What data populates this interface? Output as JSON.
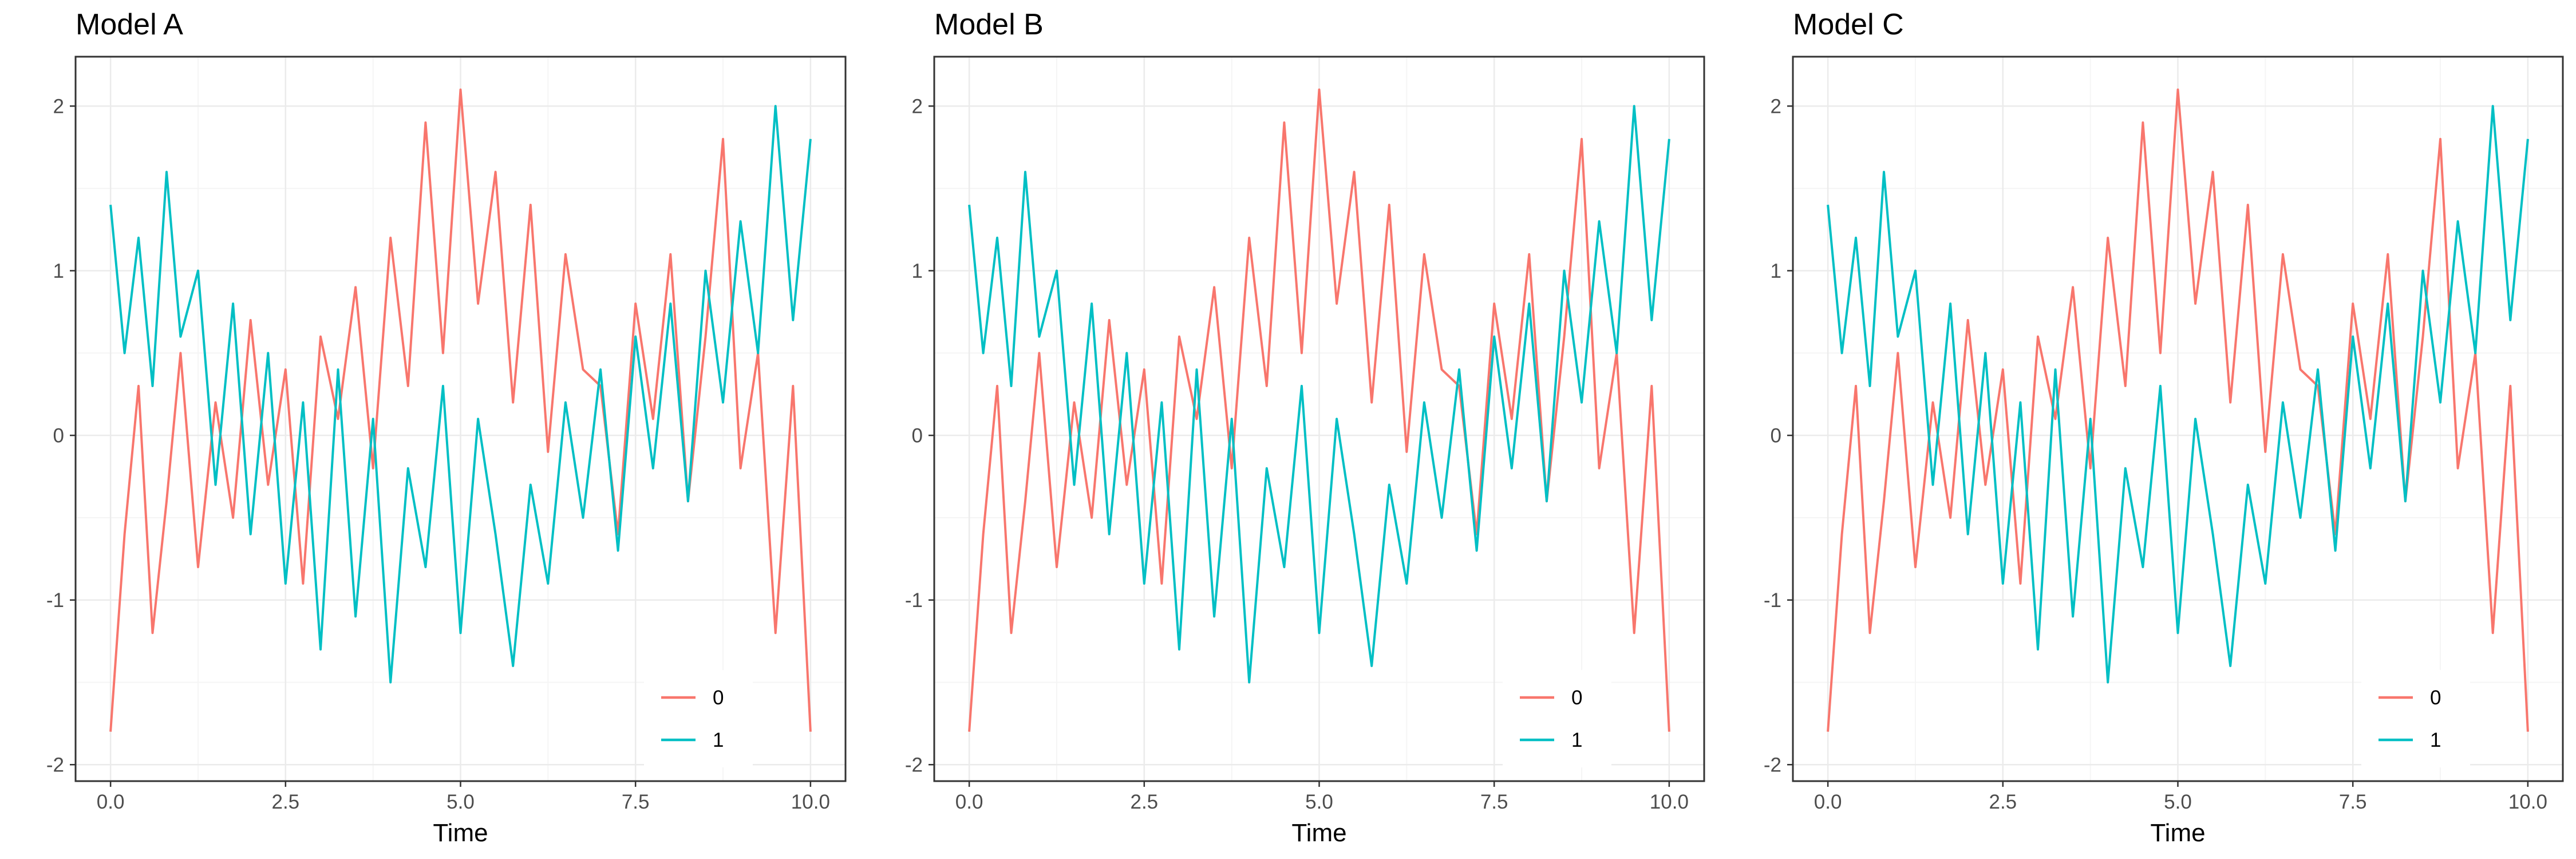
{
  "colors": {
    "series_0": "#F8766D",
    "series_1": "#00BFC4",
    "panel_border": "#333333",
    "grid_major": "#EBEBEB",
    "grid_minor": "#F5F5F5",
    "tick_text": "#4D4D4D"
  },
  "chart_data": [
    {
      "type": "line",
      "title": "Model A",
      "xlabel": "Time",
      "ylabel": "",
      "xlim": [
        -0.5,
        10.5
      ],
      "ylim": [
        -2.1,
        2.3
      ],
      "xticks": [
        0.0,
        2.5,
        5.0,
        7.5,
        10.0
      ],
      "xtick_labels": [
        "0.0",
        "2.5",
        "5.0",
        "7.5",
        "10.0"
      ],
      "yticks": [
        -2,
        -1,
        0,
        1,
        2
      ],
      "ytick_labels": [
        "-2",
        "-1",
        "0",
        "1",
        "2"
      ],
      "grid": true,
      "legend_position": "bottom-right",
      "series": [
        {
          "name": "0",
          "color": "#F8766D",
          "x": [
            0.0,
            0.2,
            0.4,
            0.6,
            0.8,
            1.0,
            1.25,
            1.5,
            1.75,
            2.0,
            2.25,
            2.5,
            2.75,
            3.0,
            3.25,
            3.5,
            3.75,
            4.0,
            4.25,
            4.5,
            4.75,
            5.0,
            5.25,
            5.5,
            5.75,
            6.0,
            6.25,
            6.5,
            6.75,
            7.0,
            7.25,
            7.5,
            7.75,
            8.0,
            8.25,
            8.5,
            8.75,
            9.0,
            9.25,
            9.5,
            9.75,
            10.0
          ],
          "y": [
            -1.8,
            -0.6,
            0.3,
            -1.2,
            -0.4,
            0.5,
            -0.8,
            0.2,
            -0.5,
            0.7,
            -0.3,
            0.4,
            -0.9,
            0.6,
            0.1,
            0.9,
            -0.2,
            1.2,
            0.3,
            1.9,
            0.5,
            2.1,
            0.8,
            1.6,
            0.2,
            1.4,
            -0.1,
            1.1,
            0.4,
            0.3,
            -0.6,
            0.8,
            0.1,
            1.1,
            -0.4,
            0.6,
            1.8,
            -0.2,
            0.5,
            -1.2,
            0.3,
            -1.8
          ]
        },
        {
          "name": "1",
          "color": "#00BFC4",
          "x": [
            0.0,
            0.2,
            0.4,
            0.6,
            0.8,
            1.0,
            1.25,
            1.5,
            1.75,
            2.0,
            2.25,
            2.5,
            2.75,
            3.0,
            3.25,
            3.5,
            3.75,
            4.0,
            4.25,
            4.5,
            4.75,
            5.0,
            5.25,
            5.5,
            5.75,
            6.0,
            6.25,
            6.5,
            6.75,
            7.0,
            7.25,
            7.5,
            7.75,
            8.0,
            8.25,
            8.5,
            8.75,
            9.0,
            9.25,
            9.5,
            9.75,
            10.0
          ],
          "y": [
            1.4,
            0.5,
            1.2,
            0.3,
            1.6,
            0.6,
            1.0,
            -0.3,
            0.8,
            -0.6,
            0.5,
            -0.9,
            0.2,
            -1.3,
            0.4,
            -1.1,
            0.1,
            -1.5,
            -0.2,
            -0.8,
            0.3,
            -1.2,
            0.1,
            -0.6,
            -1.4,
            -0.3,
            -0.9,
            0.2,
            -0.5,
            0.4,
            -0.7,
            0.6,
            -0.2,
            0.8,
            -0.4,
            1.0,
            0.2,
            1.3,
            0.5,
            2.0,
            0.7,
            1.8
          ]
        }
      ]
    },
    {
      "type": "line",
      "title": "Model B",
      "xlabel": "Time",
      "ylabel": "",
      "xlim": [
        -0.5,
        10.5
      ],
      "ylim": [
        -2.1,
        2.3
      ],
      "xticks": [
        0.0,
        2.5,
        5.0,
        7.5,
        10.0
      ],
      "xtick_labels": [
        "0.0",
        "2.5",
        "5.0",
        "7.5",
        "10.0"
      ],
      "yticks": [
        -2,
        -1,
        0,
        1,
        2
      ],
      "ytick_labels": [
        "-2",
        "-1",
        "0",
        "1",
        "2"
      ],
      "grid": true,
      "legend_position": "bottom-right",
      "series": [
        {
          "name": "0",
          "color": "#F8766D",
          "x": [
            0.0,
            0.2,
            0.4,
            0.6,
            0.8,
            1.0,
            1.25,
            1.5,
            1.75,
            2.0,
            2.25,
            2.5,
            2.75,
            3.0,
            3.25,
            3.5,
            3.75,
            4.0,
            4.25,
            4.5,
            4.75,
            5.0,
            5.25,
            5.5,
            5.75,
            6.0,
            6.25,
            6.5,
            6.75,
            7.0,
            7.25,
            7.5,
            7.75,
            8.0,
            8.25,
            8.5,
            8.75,
            9.0,
            9.25,
            9.5,
            9.75,
            10.0
          ],
          "y": [
            -1.8,
            -0.6,
            0.3,
            -1.2,
            -0.4,
            0.5,
            -0.8,
            0.2,
            -0.5,
            0.7,
            -0.3,
            0.4,
            -0.9,
            0.6,
            0.1,
            0.9,
            -0.2,
            1.2,
            0.3,
            1.9,
            0.5,
            2.1,
            0.8,
            1.6,
            0.2,
            1.4,
            -0.1,
            1.1,
            0.4,
            0.3,
            -0.6,
            0.8,
            0.1,
            1.1,
            -0.4,
            0.6,
            1.8,
            -0.2,
            0.5,
            -1.2,
            0.3,
            -1.8
          ]
        },
        {
          "name": "1",
          "color": "#00BFC4",
          "x": [
            0.0,
            0.2,
            0.4,
            0.6,
            0.8,
            1.0,
            1.25,
            1.5,
            1.75,
            2.0,
            2.25,
            2.5,
            2.75,
            3.0,
            3.25,
            3.5,
            3.75,
            4.0,
            4.25,
            4.5,
            4.75,
            5.0,
            5.25,
            5.5,
            5.75,
            6.0,
            6.25,
            6.5,
            6.75,
            7.0,
            7.25,
            7.5,
            7.75,
            8.0,
            8.25,
            8.5,
            8.75,
            9.0,
            9.25,
            9.5,
            9.75,
            10.0
          ],
          "y": [
            1.4,
            0.5,
            1.2,
            0.3,
            1.6,
            0.6,
            1.0,
            -0.3,
            0.8,
            -0.6,
            0.5,
            -0.9,
            0.2,
            -1.3,
            0.4,
            -1.1,
            0.1,
            -1.5,
            -0.2,
            -0.8,
            0.3,
            -1.2,
            0.1,
            -0.6,
            -1.4,
            -0.3,
            -0.9,
            0.2,
            -0.5,
            0.4,
            -0.7,
            0.6,
            -0.2,
            0.8,
            -0.4,
            1.0,
            0.2,
            1.3,
            0.5,
            2.0,
            0.7,
            1.8
          ]
        }
      ]
    },
    {
      "type": "line",
      "title": "Model C",
      "xlabel": "Time",
      "ylabel": "",
      "xlim": [
        -0.5,
        10.5
      ],
      "ylim": [
        -2.1,
        2.3
      ],
      "xticks": [
        0.0,
        2.5,
        5.0,
        7.5,
        10.0
      ],
      "xtick_labels": [
        "0.0",
        "2.5",
        "5.0",
        "7.5",
        "10.0"
      ],
      "yticks": [
        -2,
        -1,
        0,
        1,
        2
      ],
      "ytick_labels": [
        "-2",
        "-1",
        "0",
        "1",
        "2"
      ],
      "grid": true,
      "legend_position": "bottom-right",
      "series": [
        {
          "name": "0",
          "color": "#F8766D",
          "x": [
            0.0,
            0.2,
            0.4,
            0.6,
            0.8,
            1.0,
            1.25,
            1.5,
            1.75,
            2.0,
            2.25,
            2.5,
            2.75,
            3.0,
            3.25,
            3.5,
            3.75,
            4.0,
            4.25,
            4.5,
            4.75,
            5.0,
            5.25,
            5.5,
            5.75,
            6.0,
            6.25,
            6.5,
            6.75,
            7.0,
            7.25,
            7.5,
            7.75,
            8.0,
            8.25,
            8.5,
            8.75,
            9.0,
            9.25,
            9.5,
            9.75,
            10.0
          ],
          "y": [
            -1.8,
            -0.6,
            0.3,
            -1.2,
            -0.4,
            0.5,
            -0.8,
            0.2,
            -0.5,
            0.7,
            -0.3,
            0.4,
            -0.9,
            0.6,
            0.1,
            0.9,
            -0.2,
            1.2,
            0.3,
            1.9,
            0.5,
            2.1,
            0.8,
            1.6,
            0.2,
            1.4,
            -0.1,
            1.1,
            0.4,
            0.3,
            -0.6,
            0.8,
            0.1,
            1.1,
            -0.4,
            0.6,
            1.8,
            -0.2,
            0.5,
            -1.2,
            0.3,
            -1.8
          ]
        },
        {
          "name": "1",
          "color": "#00BFC4",
          "x": [
            0.0,
            0.2,
            0.4,
            0.6,
            0.8,
            1.0,
            1.25,
            1.5,
            1.75,
            2.0,
            2.25,
            2.5,
            2.75,
            3.0,
            3.25,
            3.5,
            3.75,
            4.0,
            4.25,
            4.5,
            4.75,
            5.0,
            5.25,
            5.5,
            5.75,
            6.0,
            6.25,
            6.5,
            6.75,
            7.0,
            7.25,
            7.5,
            7.75,
            8.0,
            8.25,
            8.5,
            8.75,
            9.0,
            9.25,
            9.5,
            9.75,
            10.0
          ],
          "y": [
            1.4,
            0.5,
            1.2,
            0.3,
            1.6,
            0.6,
            1.0,
            -0.3,
            0.8,
            -0.6,
            0.5,
            -0.9,
            0.2,
            -1.3,
            0.4,
            -1.1,
            0.1,
            -1.5,
            -0.2,
            -0.8,
            0.3,
            -1.2,
            0.1,
            -0.6,
            -1.4,
            -0.3,
            -0.9,
            0.2,
            -0.5,
            0.4,
            -0.7,
            0.6,
            -0.2,
            0.8,
            -0.4,
            1.0,
            0.2,
            1.3,
            0.5,
            2.0,
            0.7,
            1.8
          ]
        }
      ]
    }
  ]
}
